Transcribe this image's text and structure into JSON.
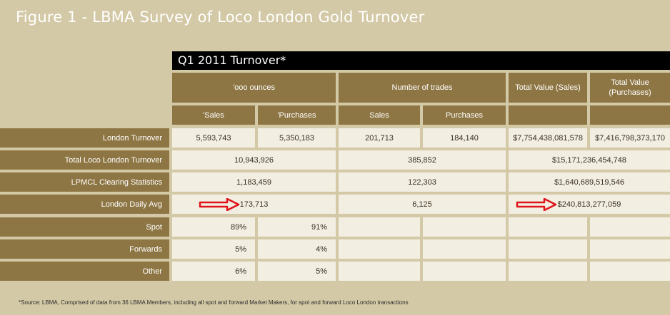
{
  "title": "Figure 1 - LBMA Survey of Loco London Gold Turnover",
  "period_label": "Q1 2011 Turnover*",
  "headers": {
    "ounces": "'ooo ounces",
    "trades": "Number of trades",
    "value_sales": "Total Value (Sales)",
    "value_purchases": "Total Value (Purchases)",
    "sub_sales_oz": "'Sales",
    "sub_purchases_oz": "'Purchases",
    "sub_sales_trades": "Sales",
    "sub_purchases_trades": "Purchases"
  },
  "chart_data": {
    "type": "table",
    "rows": [
      {
        "label": "London Turnover",
        "oz_sales": "5,593,743",
        "oz_purchases": "5,350,183",
        "trades_sales": "201,713",
        "trades_purchases": "184,140",
        "value_sales": "$7,754,438,081,578",
        "value_purchases": "$7,416,798,373,170"
      },
      {
        "label": "Total Loco London Turnover",
        "oz_total": "10,943,926",
        "trades_total": "385,852",
        "value_total": "$15,171,236,454,748"
      },
      {
        "label": "LPMCL Clearing Statistics",
        "oz_total": "1,183,459",
        "trades_total": "122,303",
        "value_total": "$1,640,689,519,546"
      },
      {
        "label": "London Daily Avg",
        "oz_total": "173,713",
        "trades_total": "6,125",
        "value_total": "$240,813,277,059"
      },
      {
        "label": "Spot",
        "oz_sales": "89%",
        "oz_purchases": "91%"
      },
      {
        "label": "Forwards",
        "oz_sales": "5%",
        "oz_purchases": "4%"
      },
      {
        "label": "Other",
        "oz_sales": "6%",
        "oz_purchases": "5%"
      }
    ]
  },
  "footnote": "*Source: LBMA, Comprised of data from 36 LBMA Members, including all spot and forward Market Makers, for spot and forward Loco London transactions",
  "colors": {
    "header": "#8e7644",
    "background": "#d4c9a6",
    "cell": "#f2eee2",
    "arrow": "#e0141b"
  }
}
